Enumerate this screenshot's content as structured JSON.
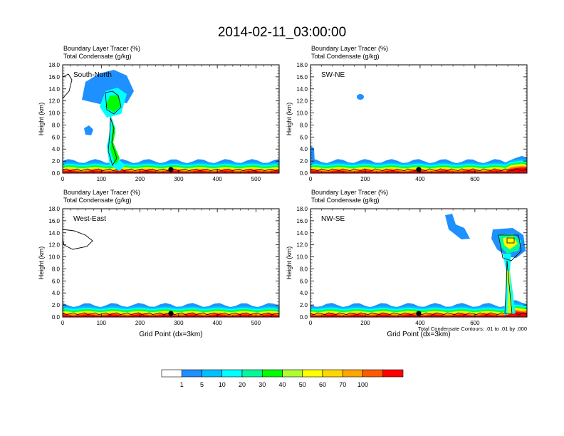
{
  "title": "2014-02-11_03:00:00",
  "chart_data": [
    {
      "type": "heatmap",
      "panel": "top-left",
      "label": "South-North",
      "title_line1": "Boundary Layer Tracer   (%)",
      "title_line2": "Total Condensate   (g/kg)",
      "ylabel": "Height (km)",
      "xlabel": "",
      "xlim": [
        0,
        560
      ],
      "ylim": [
        0,
        18
      ],
      "xticks": [
        0,
        100,
        200,
        300,
        400,
        500
      ],
      "yticks": [
        "0.0",
        "2.0",
        "4.0",
        "6.0",
        "8.0",
        "10.0",
        "12.0",
        "14.0",
        "16.0",
        "18.0"
      ],
      "marker_x": 280,
      "footnote": ""
    },
    {
      "type": "heatmap",
      "panel": "top-right",
      "label": "SW-NE",
      "title_line1": "Boundary Layer Tracer   (%)",
      "title_line2": "Total Condensate   (g/kg)",
      "ylabel": "Height (km)",
      "xlabel": "",
      "xlim": [
        0,
        790
      ],
      "ylim": [
        0,
        18
      ],
      "xticks": [
        0,
        200,
        400,
        600
      ],
      "yticks": [
        "0.0",
        "2.0",
        "4.0",
        "6.0",
        "8.0",
        "10.0",
        "12.0",
        "14.0",
        "16.0",
        "18.0"
      ],
      "marker_x": 395,
      "footnote": ""
    },
    {
      "type": "heatmap",
      "panel": "bottom-left",
      "label": "West-East",
      "title_line1": "Boundary Layer Tracer   (%)",
      "title_line2": "Total Condensate   (g/kg)",
      "ylabel": "Height (km)",
      "xlabel": "Grid Point (dx=3km)",
      "xlim": [
        0,
        560
      ],
      "ylim": [
        0,
        18
      ],
      "xticks": [
        0,
        100,
        200,
        300,
        400,
        500
      ],
      "yticks": [
        "0.0",
        "2.0",
        "4.0",
        "6.0",
        "8.0",
        "10.0",
        "12.0",
        "14.0",
        "16.0",
        "18.0"
      ],
      "marker_x": 280,
      "footnote": ""
    },
    {
      "type": "heatmap",
      "panel": "bottom-right",
      "label": "NW-SE",
      "title_line1": "Boundary Layer Tracer   (%)",
      "title_line2": "Total Condensate   (g/kg)",
      "ylabel": "Height (km)",
      "xlabel": "Grid Point (dx=3km)",
      "xlim": [
        0,
        790
      ],
      "ylim": [
        0,
        18
      ],
      "xticks": [
        0,
        200,
        400,
        600
      ],
      "yticks": [
        "0.0",
        "2.0",
        "4.0",
        "6.0",
        "8.0",
        "10.0",
        "12.0",
        "14.0",
        "16.0",
        "18.0"
      ],
      "marker_x": 395,
      "footnote": "Total Condensate Contours: .01 to .01 by .000"
    }
  ],
  "colorbar": {
    "levels": [
      "1",
      "5",
      "10",
      "20",
      "30",
      "40",
      "50",
      "60",
      "70",
      "100"
    ],
    "colors": [
      "#ffffff",
      "#1e90ff",
      "#00bfff",
      "#00ffff",
      "#00fa9a",
      "#00ff00",
      "#adff2f",
      "#ffff00",
      "#ffd700",
      "#ffa500",
      "#ff5a00",
      "#ff0000"
    ]
  }
}
